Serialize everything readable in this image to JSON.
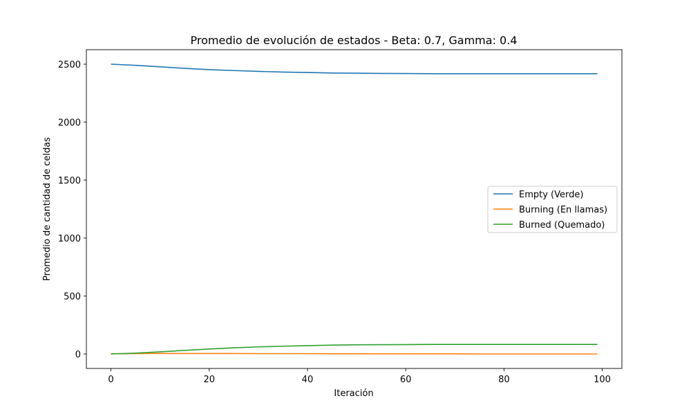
{
  "chart_data": {
    "type": "line",
    "title": "Promedio de evolución de estados - Beta: 0.7, Gamma: 0.4",
    "xlabel": "Iteración",
    "ylabel": "Promedio de cantidad de celdas",
    "xlim": [
      -5,
      104
    ],
    "ylim": [
      -125,
      2625
    ],
    "xticks": [
      0,
      20,
      40,
      60,
      80,
      100
    ],
    "yticks": [
      0,
      500,
      1000,
      1500,
      2000,
      2500
    ],
    "grid": false,
    "legend_position": "center-right",
    "x": [
      0,
      5,
      10,
      15,
      20,
      25,
      30,
      35,
      40,
      45,
      50,
      55,
      60,
      65,
      70,
      75,
      80,
      85,
      90,
      95,
      99
    ],
    "series": [
      {
        "name": "Empty (Verde)",
        "color": "#1f77b4",
        "values": [
          2500,
          2490,
          2477,
          2464,
          2453,
          2445,
          2438,
          2432,
          2428,
          2424,
          2422,
          2420,
          2419,
          2418,
          2418,
          2418,
          2418,
          2418,
          2418,
          2418,
          2418
        ]
      },
      {
        "name": "Burning (En llamas)",
        "color": "#ff7f0e",
        "values": [
          2,
          3,
          4,
          4,
          4,
          4,
          3,
          3,
          3,
          2,
          2,
          1,
          1,
          1,
          1,
          0,
          0,
          0,
          0,
          0,
          0
        ]
      },
      {
        "name": "Burned (Quemado)",
        "color": "#2ca02c",
        "values": [
          0,
          7,
          18,
          31,
          43,
          53,
          61,
          67,
          72,
          76,
          79,
          80,
          81,
          82,
          82,
          82,
          82,
          82,
          82,
          82,
          82
        ]
      }
    ]
  }
}
